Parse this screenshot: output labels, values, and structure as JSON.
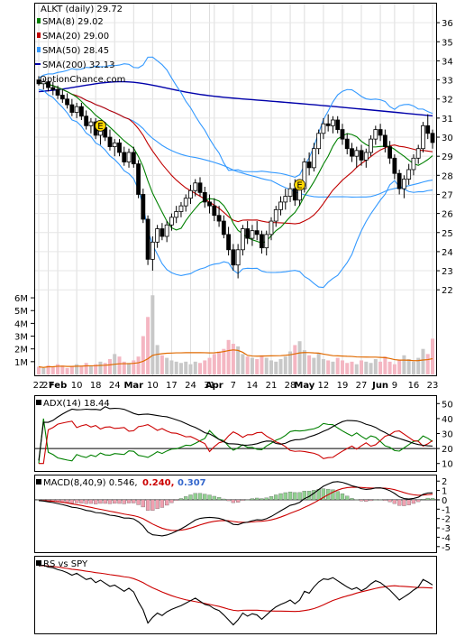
{
  "chart_data": {
    "type": "candlestick",
    "ticker_label": "ALKT (daily) 29.72",
    "watermark": "OptionChance.com",
    "legend": [
      {
        "label": "SMA(8) 29.02",
        "color": "#008000"
      },
      {
        "label": "SMA(20) 29.00",
        "color": "#c00000"
      },
      {
        "label": "SMA(50) 28.45",
        "color": "#3399ff"
      },
      {
        "label": "SMA(200) 32.13",
        "color": "#0000aa"
      }
    ],
    "price_axis": {
      "ticks": [
        "36",
        "35",
        "34",
        "33",
        "32",
        "31",
        "30",
        "29",
        "28",
        "27",
        "26",
        "25",
        "24",
        "23",
        "22"
      ],
      "ylim": [
        21.3,
        37
      ]
    },
    "volume_axis": {
      "ticks": [
        "6M",
        "5M",
        "4M",
        "3M",
        "2M",
        "1M"
      ],
      "ylim": [
        0,
        6.5
      ]
    },
    "x_tick_labels": [
      {
        "i": 0,
        "t": "22",
        "b": false
      },
      {
        "i": 2,
        "t": "27",
        "b": false
      },
      {
        "i": 4,
        "t": "Feb",
        "b": true
      },
      {
        "i": 8,
        "t": "10",
        "b": false
      },
      {
        "i": 12,
        "t": "18",
        "b": false
      },
      {
        "i": 16,
        "t": "24",
        "b": false
      },
      {
        "i": 20,
        "t": "Mar",
        "b": true
      },
      {
        "i": 24,
        "t": "10",
        "b": false
      },
      {
        "i": 28,
        "t": "17",
        "b": false
      },
      {
        "i": 32,
        "t": "24",
        "b": false
      },
      {
        "i": 36,
        "t": "31",
        "b": false
      },
      {
        "i": 37,
        "t": "Apr",
        "b": true
      },
      {
        "i": 41,
        "t": "7",
        "b": false
      },
      {
        "i": 45,
        "t": "14",
        "b": false
      },
      {
        "i": 49,
        "t": "21",
        "b": false
      },
      {
        "i": 53,
        "t": "28",
        "b": false
      },
      {
        "i": 56,
        "t": "May",
        "b": true
      },
      {
        "i": 60,
        "t": "12",
        "b": false
      },
      {
        "i": 64,
        "t": "19",
        "b": false
      },
      {
        "i": 68,
        "t": "27",
        "b": false
      },
      {
        "i": 72,
        "t": "Jun",
        "b": true
      },
      {
        "i": 75,
        "t": "9",
        "b": false
      },
      {
        "i": 79,
        "t": "16",
        "b": false
      },
      {
        "i": 83,
        "t": "23",
        "b": false
      }
    ],
    "earnings_markers": [
      {
        "i": 13,
        "y": 30.6,
        "t": "E"
      },
      {
        "i": 55,
        "y": 27.5,
        "t": "E"
      }
    ],
    "candles": [
      [
        33.0,
        33.2,
        32.7,
        32.8
      ],
      [
        32.8,
        33.1,
        32.5,
        32.9
      ],
      [
        32.9,
        33.0,
        32.4,
        32.6
      ],
      [
        32.6,
        32.9,
        32.2,
        32.5
      ],
      [
        32.5,
        32.7,
        32.0,
        32.2
      ],
      [
        32.2,
        32.5,
        31.8,
        32.0
      ],
      [
        32.0,
        32.3,
        31.5,
        31.7
      ],
      [
        31.7,
        32.0,
        31.1,
        31.3
      ],
      [
        31.3,
        31.8,
        31.0,
        31.6
      ],
      [
        31.6,
        31.8,
        30.9,
        31.1
      ],
      [
        31.1,
        31.4,
        30.4,
        30.6
      ],
      [
        30.6,
        31.0,
        30.2,
        30.8
      ],
      [
        30.8,
        31.0,
        29.9,
        30.1
      ],
      [
        30.1,
        30.7,
        29.6,
        30.5
      ],
      [
        30.5,
        30.8,
        29.8,
        30.0
      ],
      [
        30.0,
        30.4,
        29.3,
        29.5
      ],
      [
        29.5,
        29.9,
        29.0,
        29.7
      ],
      [
        29.7,
        29.9,
        29.0,
        29.2
      ],
      [
        29.2,
        29.5,
        28.5,
        28.7
      ],
      [
        28.7,
        29.4,
        28.4,
        29.2
      ],
      [
        29.2,
        29.5,
        28.4,
        28.6
      ],
      [
        28.6,
        28.8,
        26.8,
        27.0
      ],
      [
        27.0,
        27.3,
        25.5,
        25.7
      ],
      [
        25.7,
        25.9,
        23.3,
        23.6
      ],
      [
        23.6,
        24.8,
        23.0,
        24.5
      ],
      [
        24.5,
        25.4,
        24.2,
        25.2
      ],
      [
        25.2,
        25.5,
        24.6,
        24.8
      ],
      [
        24.8,
        25.6,
        24.5,
        25.4
      ],
      [
        25.4,
        26.0,
        25.1,
        25.8
      ],
      [
        25.8,
        26.4,
        25.5,
        26.1
      ],
      [
        26.1,
        26.6,
        25.8,
        26.4
      ],
      [
        26.4,
        27.0,
        26.1,
        26.8
      ],
      [
        26.8,
        27.5,
        26.5,
        27.2
      ],
      [
        27.2,
        27.8,
        26.9,
        27.6
      ],
      [
        27.6,
        27.9,
        26.9,
        27.1
      ],
      [
        27.1,
        27.4,
        26.3,
        26.6
      ],
      [
        26.6,
        27.0,
        26.0,
        26.4
      ],
      [
        26.4,
        26.8,
        25.6,
        25.9
      ],
      [
        25.9,
        26.4,
        25.3,
        25.6
      ],
      [
        25.6,
        25.9,
        24.7,
        24.9
      ],
      [
        24.9,
        25.3,
        23.8,
        24.1
      ],
      [
        24.1,
        24.4,
        23.0,
        23.3
      ],
      [
        23.3,
        24.4,
        22.6,
        24.1
      ],
      [
        24.1,
        25.4,
        23.8,
        25.2
      ],
      [
        25.2,
        25.6,
        24.4,
        24.7
      ],
      [
        24.7,
        25.4,
        24.3,
        25.1
      ],
      [
        25.1,
        25.6,
        24.6,
        24.9
      ],
      [
        24.9,
        25.1,
        23.9,
        24.2
      ],
      [
        24.2,
        25.1,
        23.8,
        24.9
      ],
      [
        24.9,
        25.8,
        24.6,
        25.6
      ],
      [
        25.6,
        26.4,
        25.3,
        26.2
      ],
      [
        26.2,
        26.9,
        25.9,
        26.6
      ],
      [
        26.6,
        27.3,
        26.2,
        26.9
      ],
      [
        26.9,
        27.6,
        26.6,
        27.3
      ],
      [
        27.3,
        27.8,
        26.4,
        26.7
      ],
      [
        26.7,
        27.5,
        26.4,
        27.3
      ],
      [
        27.3,
        28.9,
        27.1,
        28.7
      ],
      [
        28.7,
        29.2,
        28.0,
        28.4
      ],
      [
        28.4,
        29.7,
        28.2,
        29.4
      ],
      [
        29.4,
        30.4,
        29.1,
        30.2
      ],
      [
        30.2,
        31.0,
        29.9,
        30.7
      ],
      [
        30.7,
        31.2,
        30.3,
        30.6
      ],
      [
        30.6,
        31.1,
        30.2,
        30.9
      ],
      [
        30.9,
        31.1,
        30.2,
        30.4
      ],
      [
        30.4,
        30.7,
        29.6,
        29.9
      ],
      [
        29.9,
        30.2,
        29.1,
        29.4
      ],
      [
        29.4,
        29.7,
        28.7,
        29.0
      ],
      [
        29.0,
        29.5,
        28.4,
        29.3
      ],
      [
        29.3,
        29.6,
        28.5,
        28.8
      ],
      [
        28.8,
        29.4,
        28.4,
        29.2
      ],
      [
        29.2,
        30.1,
        29.0,
        29.9
      ],
      [
        29.9,
        30.6,
        29.6,
        30.4
      ],
      [
        30.4,
        30.7,
        29.8,
        30.1
      ],
      [
        30.1,
        30.4,
        29.2,
        29.5
      ],
      [
        29.5,
        29.8,
        28.6,
        28.9
      ],
      [
        28.9,
        29.1,
        27.8,
        28.1
      ],
      [
        28.1,
        28.3,
        27.0,
        27.3
      ],
      [
        27.3,
        28.0,
        26.8,
        27.8
      ],
      [
        27.8,
        28.6,
        27.5,
        28.3
      ],
      [
        28.3,
        29.1,
        28.0,
        28.9
      ],
      [
        28.9,
        29.6,
        28.6,
        29.4
      ],
      [
        29.4,
        30.8,
        29.2,
        30.6
      ],
      [
        30.6,
        31.2,
        29.9,
        30.2
      ],
      [
        30.2,
        30.4,
        29.4,
        29.72
      ]
    ],
    "volume_m": [
      0.6,
      0.5,
      0.7,
      0.6,
      0.8,
      0.7,
      0.5,
      0.6,
      0.8,
      0.7,
      0.9,
      0.7,
      0.8,
      1.0,
      0.9,
      1.2,
      1.6,
      1.4,
      1.0,
      0.9,
      1.1,
      1.4,
      3.0,
      4.5,
      6.2,
      2.3,
      1.5,
      1.3,
      1.1,
      1.0,
      0.9,
      1.0,
      0.8,
      1.0,
      0.9,
      1.1,
      1.3,
      1.6,
      1.8,
      2.0,
      2.7,
      2.4,
      2.2,
      1.6,
      1.4,
      1.3,
      1.2,
      1.5,
      1.3,
      1.1,
      1.0,
      1.2,
      1.4,
      1.8,
      2.3,
      2.6,
      1.9,
      1.5,
      1.3,
      1.7,
      1.2,
      1.1,
      1.0,
      1.3,
      1.1,
      0.9,
      1.0,
      0.8,
      1.1,
      1.0,
      0.9,
      1.2,
      1.0,
      1.4,
      1.0,
      0.8,
      1.1,
      1.5,
      1.2,
      1.0,
      1.3,
      2.0,
      1.6,
      2.8
    ],
    "adx_panel": {
      "label": "ADX(14) 18.44",
      "ticks": [
        "50",
        "40",
        "30",
        "20",
        "10"
      ],
      "ylim": [
        5,
        55
      ]
    },
    "macd_panel": {
      "label": "MACD(8,40,9) 0.546,",
      "signal_text": "0.240,",
      "hist_text": "0.307",
      "signal_color": "#cc0000",
      "hist_color": "#3366cc",
      "ticks": [
        "2",
        "1",
        "0",
        "-1",
        "-2",
        "-3",
        "-4",
        "-5"
      ],
      "ylim": [
        -5.6,
        2.6
      ]
    },
    "rs_panel": {
      "label": "RS vs SPY"
    }
  }
}
